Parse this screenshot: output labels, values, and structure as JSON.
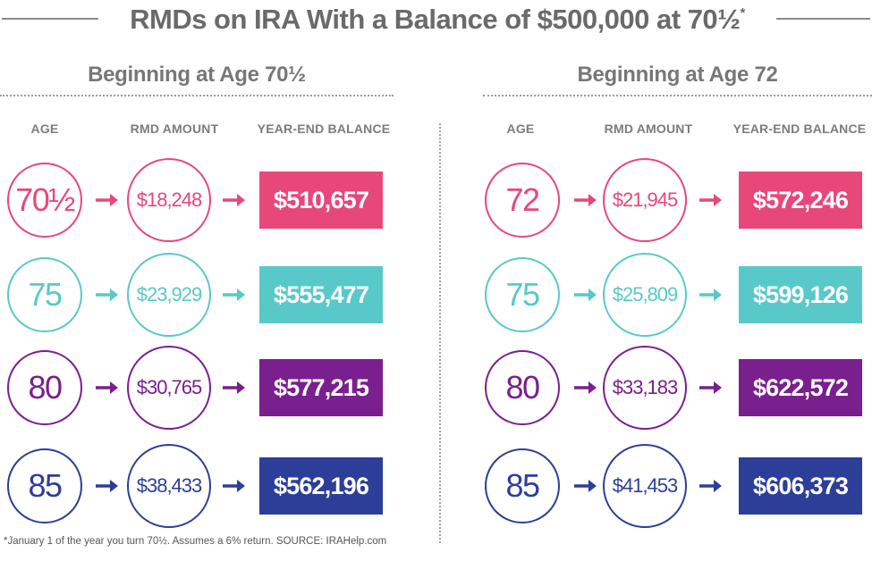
{
  "title": "RMDs on IRA With a Balance of $500,000 at 70½",
  "title_mark": "*",
  "column_headers": {
    "age": "AGE",
    "rmd": "RMD AMOUNT",
    "balance": "YEAR-END BALANCE"
  },
  "colors": {
    "pink": "#e8477a",
    "teal": "#58c9c8",
    "purple": "#7a1f8e",
    "blue": "#2d3e98"
  },
  "icons": {
    "row_arrow": "right-arrow-icon"
  },
  "footnote": "*January 1 of the year you turn 70½. Assumes a 6% return.  SOURCE: IRAHelp.com",
  "chart_data": [
    {
      "type": "table",
      "title": "Beginning at Age 70½",
      "columns": [
        "AGE",
        "RMD AMOUNT",
        "YEAR-END BALANCE"
      ],
      "rows": [
        {
          "age": "70½",
          "rmd": "$18,248",
          "balance": "$510,657",
          "color": "#e8477a"
        },
        {
          "age": "75",
          "rmd": "$23,929",
          "balance": "$555,477",
          "color": "#58c9c8"
        },
        {
          "age": "80",
          "rmd": "$30,765",
          "balance": "$577,215",
          "color": "#7a1f8e"
        },
        {
          "age": "85",
          "rmd": "$38,433",
          "balance": "$562,196",
          "color": "#2d3e98"
        }
      ]
    },
    {
      "type": "table",
      "title": "Beginning at Age 72",
      "columns": [
        "AGE",
        "RMD AMOUNT",
        "YEAR-END BALANCE"
      ],
      "rows": [
        {
          "age": "72",
          "rmd": "$21,945",
          "balance": "$572,246",
          "color": "#e8477a"
        },
        {
          "age": "75",
          "rmd": "$25,809",
          "balance": "$599,126",
          "color": "#58c9c8"
        },
        {
          "age": "80",
          "rmd": "$33,183",
          "balance": "$622,572",
          "color": "#7a1f8e"
        },
        {
          "age": "85",
          "rmd": "$41,453",
          "balance": "$606,373",
          "color": "#2d3e98"
        }
      ]
    }
  ]
}
